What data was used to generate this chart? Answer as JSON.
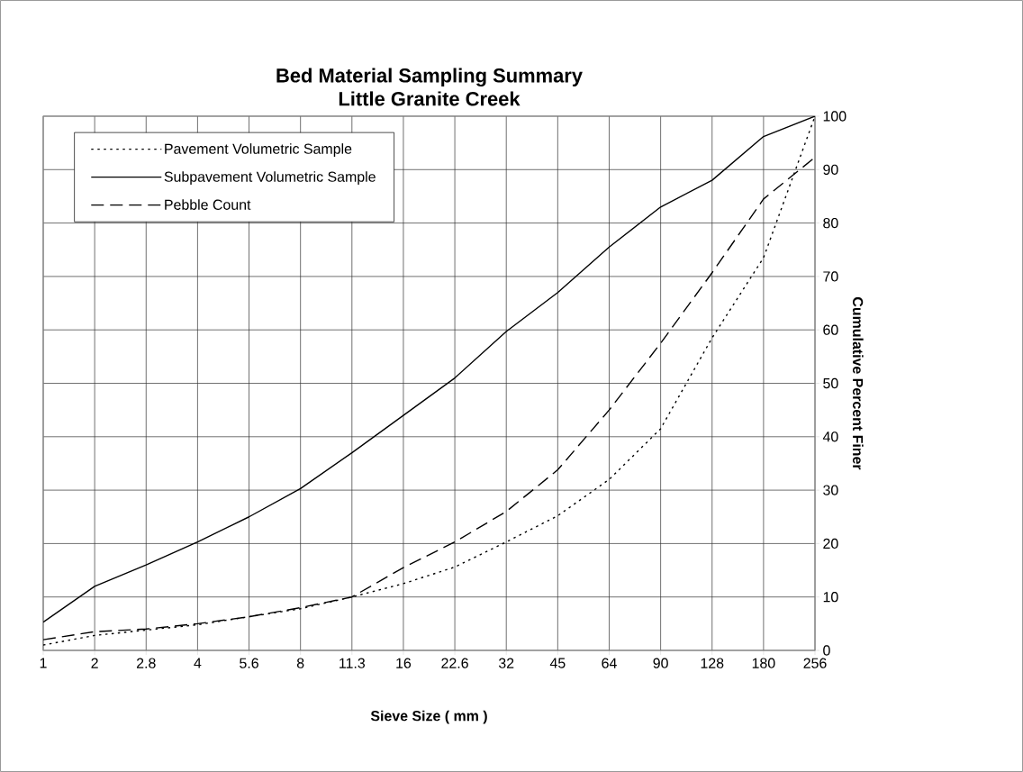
{
  "chart_data": {
    "type": "line",
    "title": "Bed Material Sampling Summary",
    "subtitle": "Little Granite Creek",
    "xlabel": "Sieve Size ( mm )",
    "ylabel": "Cumulative Percent Finer",
    "categories": [
      "1",
      "2",
      "2.8",
      "4",
      "5.6",
      "8",
      "11.3",
      "16",
      "22.6",
      "32",
      "45",
      "64",
      "90",
      "128",
      "180",
      "256"
    ],
    "series": [
      {
        "name": "Pavement Volumetric Sample",
        "color": "#000000",
        "line_style": "dotted",
        "values": [
          1,
          2.8,
          3.8,
          4.8,
          6.3,
          7.8,
          10,
          12.5,
          15.6,
          20.3,
          25.2,
          32,
          41.5,
          58.5,
          73.5,
          100
        ]
      },
      {
        "name": "Subpavement Volumetric Sample",
        "color": "#000000",
        "line_style": "solid",
        "values": [
          5.3,
          12,
          16,
          20.3,
          25,
          30.3,
          37,
          44,
          51,
          59.7,
          67,
          75.5,
          83,
          88,
          96.2,
          100
        ]
      },
      {
        "name": "Pebble Count",
        "color": "#000000",
        "line_style": "dashed",
        "values": [
          2,
          3.5,
          4,
          5,
          6.3,
          8,
          10,
          15.5,
          20.3,
          26,
          33.8,
          45,
          57.5,
          70.7,
          84.5,
          92.3
        ]
      }
    ],
    "ylim": [
      0,
      100
    ],
    "yticks": [
      0,
      10,
      20,
      30,
      40,
      50,
      60,
      70,
      80,
      90,
      100
    ],
    "grid": true,
    "legend": "top left",
    "marker": "none"
  }
}
